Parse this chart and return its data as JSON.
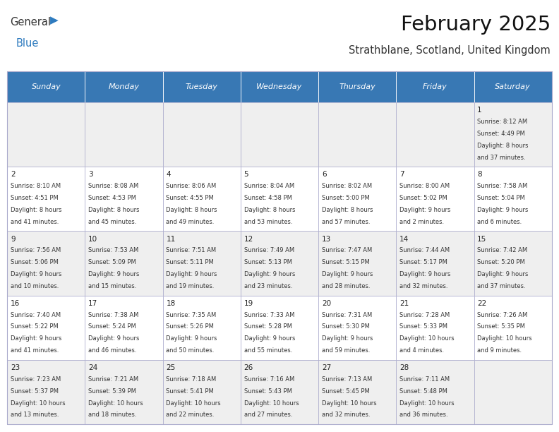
{
  "title": "February 2025",
  "subtitle": "Strathblane, Scotland, United Kingdom",
  "header_bg": "#3878B4",
  "header_text": "#FFFFFF",
  "header_days": [
    "Sunday",
    "Monday",
    "Tuesday",
    "Wednesday",
    "Thursday",
    "Friday",
    "Saturday"
  ],
  "row_colors": [
    "#EFEFEF",
    "#FFFFFF",
    "#EFEFEF",
    "#FFFFFF",
    "#EFEFEF"
  ],
  "cell_border": "#AAAACC",
  "day_number_color": "#222222",
  "info_text_color": "#333333",
  "logo_general_color": "#333333",
  "logo_blue_color": "#2E7BBF",
  "calendar_data": [
    [
      null,
      null,
      null,
      null,
      null,
      null,
      {
        "day": "1",
        "sunrise": "8:12 AM",
        "sunset": "4:49 PM",
        "daylight": "8 hours",
        "daylight2": "and 37 minutes."
      }
    ],
    [
      {
        "day": "2",
        "sunrise": "8:10 AM",
        "sunset": "4:51 PM",
        "daylight": "8 hours",
        "daylight2": "and 41 minutes."
      },
      {
        "day": "3",
        "sunrise": "8:08 AM",
        "sunset": "4:53 PM",
        "daylight": "8 hours",
        "daylight2": "and 45 minutes."
      },
      {
        "day": "4",
        "sunrise": "8:06 AM",
        "sunset": "4:55 PM",
        "daylight": "8 hours",
        "daylight2": "and 49 minutes."
      },
      {
        "day": "5",
        "sunrise": "8:04 AM",
        "sunset": "4:58 PM",
        "daylight": "8 hours",
        "daylight2": "and 53 minutes."
      },
      {
        "day": "6",
        "sunrise": "8:02 AM",
        "sunset": "5:00 PM",
        "daylight": "8 hours",
        "daylight2": "and 57 minutes."
      },
      {
        "day": "7",
        "sunrise": "8:00 AM",
        "sunset": "5:02 PM",
        "daylight": "9 hours",
        "daylight2": "and 2 minutes."
      },
      {
        "day": "8",
        "sunrise": "7:58 AM",
        "sunset": "5:04 PM",
        "daylight": "9 hours",
        "daylight2": "and 6 minutes."
      }
    ],
    [
      {
        "day": "9",
        "sunrise": "7:56 AM",
        "sunset": "5:06 PM",
        "daylight": "9 hours",
        "daylight2": "and 10 minutes."
      },
      {
        "day": "10",
        "sunrise": "7:53 AM",
        "sunset": "5:09 PM",
        "daylight": "9 hours",
        "daylight2": "and 15 minutes."
      },
      {
        "day": "11",
        "sunrise": "7:51 AM",
        "sunset": "5:11 PM",
        "daylight": "9 hours",
        "daylight2": "and 19 minutes."
      },
      {
        "day": "12",
        "sunrise": "7:49 AM",
        "sunset": "5:13 PM",
        "daylight": "9 hours",
        "daylight2": "and 23 minutes."
      },
      {
        "day": "13",
        "sunrise": "7:47 AM",
        "sunset": "5:15 PM",
        "daylight": "9 hours",
        "daylight2": "and 28 minutes."
      },
      {
        "day": "14",
        "sunrise": "7:44 AM",
        "sunset": "5:17 PM",
        "daylight": "9 hours",
        "daylight2": "and 32 minutes."
      },
      {
        "day": "15",
        "sunrise": "7:42 AM",
        "sunset": "5:20 PM",
        "daylight": "9 hours",
        "daylight2": "and 37 minutes."
      }
    ],
    [
      {
        "day": "16",
        "sunrise": "7:40 AM",
        "sunset": "5:22 PM",
        "daylight": "9 hours",
        "daylight2": "and 41 minutes."
      },
      {
        "day": "17",
        "sunrise": "7:38 AM",
        "sunset": "5:24 PM",
        "daylight": "9 hours",
        "daylight2": "and 46 minutes."
      },
      {
        "day": "18",
        "sunrise": "7:35 AM",
        "sunset": "5:26 PM",
        "daylight": "9 hours",
        "daylight2": "and 50 minutes."
      },
      {
        "day": "19",
        "sunrise": "7:33 AM",
        "sunset": "5:28 PM",
        "daylight": "9 hours",
        "daylight2": "and 55 minutes."
      },
      {
        "day": "20",
        "sunrise": "7:31 AM",
        "sunset": "5:30 PM",
        "daylight": "9 hours",
        "daylight2": "and 59 minutes."
      },
      {
        "day": "21",
        "sunrise": "7:28 AM",
        "sunset": "5:33 PM",
        "daylight": "10 hours",
        "daylight2": "and 4 minutes."
      },
      {
        "day": "22",
        "sunrise": "7:26 AM",
        "sunset": "5:35 PM",
        "daylight": "10 hours",
        "daylight2": "and 9 minutes."
      }
    ],
    [
      {
        "day": "23",
        "sunrise": "7:23 AM",
        "sunset": "5:37 PM",
        "daylight": "10 hours",
        "daylight2": "and 13 minutes."
      },
      {
        "day": "24",
        "sunrise": "7:21 AM",
        "sunset": "5:39 PM",
        "daylight": "10 hours",
        "daylight2": "and 18 minutes."
      },
      {
        "day": "25",
        "sunrise": "7:18 AM",
        "sunset": "5:41 PM",
        "daylight": "10 hours",
        "daylight2": "and 22 minutes."
      },
      {
        "day": "26",
        "sunrise": "7:16 AM",
        "sunset": "5:43 PM",
        "daylight": "10 hours",
        "daylight2": "and 27 minutes."
      },
      {
        "day": "27",
        "sunrise": "7:13 AM",
        "sunset": "5:45 PM",
        "daylight": "10 hours",
        "daylight2": "and 32 minutes."
      },
      {
        "day": "28",
        "sunrise": "7:11 AM",
        "sunset": "5:48 PM",
        "daylight": "10 hours",
        "daylight2": "and 36 minutes."
      },
      null
    ]
  ]
}
